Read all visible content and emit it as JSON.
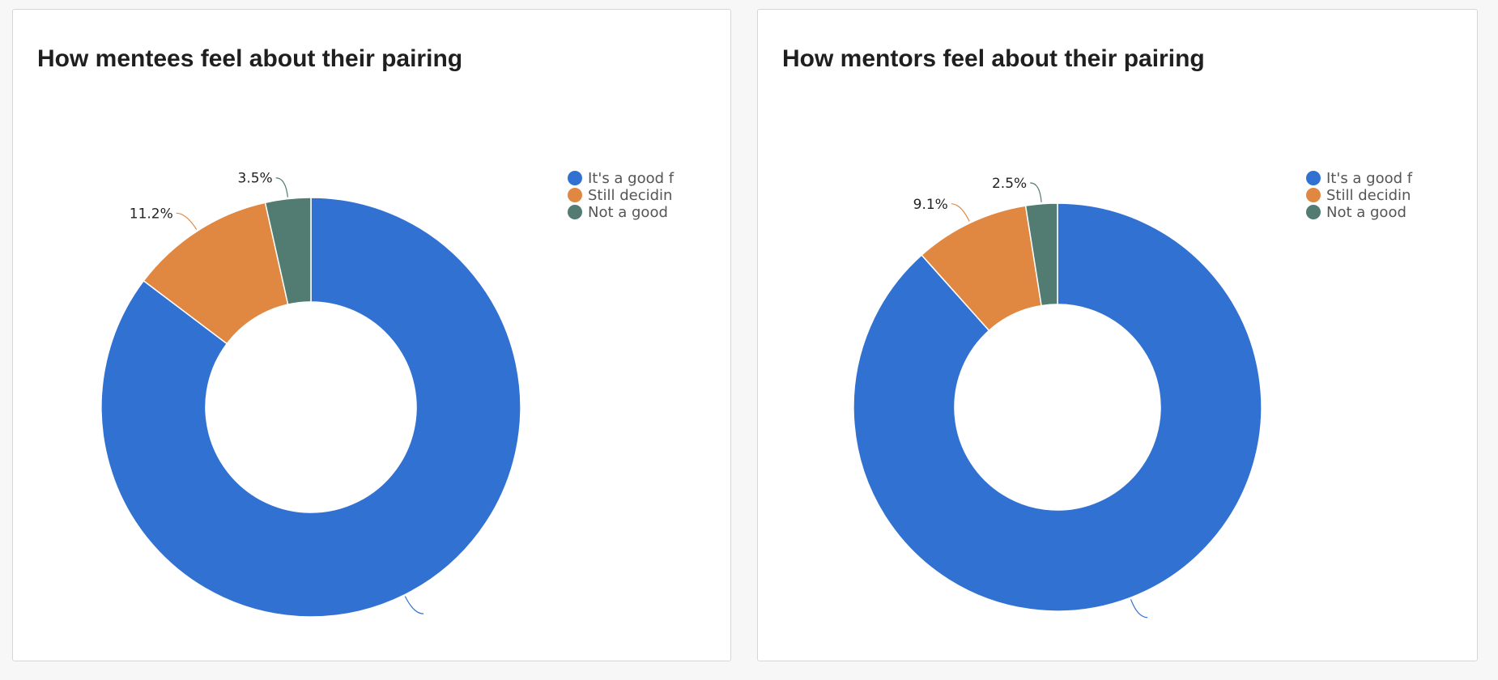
{
  "charts": [
    {
      "title": "How mentees feel about their pairing"
    },
    {
      "title": "How mentors feel about their pairing"
    }
  ],
  "chart_data": [
    {
      "type": "pie",
      "style": "donut",
      "title": "How mentees feel about their pairing",
      "legend_position": "top-right",
      "categories": [
        "It's a good f",
        "Still decidin",
        "Not a good"
      ],
      "values": [
        85.3,
        11.2,
        3.5
      ],
      "data_labels": [
        "",
        "11.2%",
        "3.5%"
      ],
      "colors": [
        "#3171d2",
        "#e08842",
        "#527b72"
      ]
    },
    {
      "type": "pie",
      "style": "donut",
      "title": "How mentors feel about their pairing",
      "legend_position": "top-right",
      "categories": [
        "It's a good f",
        "Still decidin",
        "Not a good"
      ],
      "values": [
        88.4,
        9.1,
        2.5
      ],
      "data_labels": [
        "",
        "9.1%",
        "2.5%"
      ],
      "colors": [
        "#3171d2",
        "#e08842",
        "#527b72"
      ]
    }
  ]
}
